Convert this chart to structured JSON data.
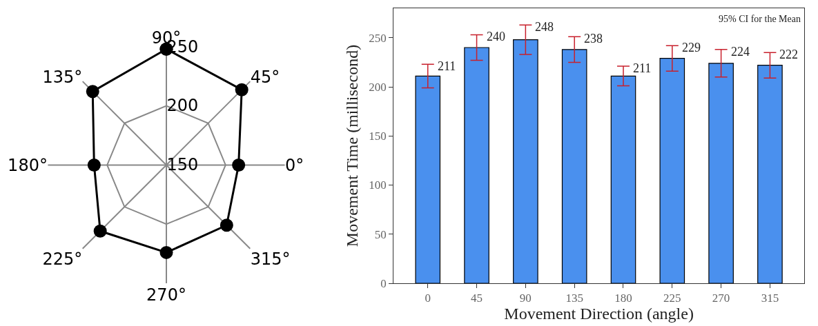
{
  "chart_data": [
    {
      "type": "radar",
      "categories": [
        "90°",
        "45°",
        "0°",
        "315°",
        "270°",
        "225°",
        "180°",
        "135°"
      ],
      "series": [
        {
          "color": "#000000",
          "values": [
            248,
            240,
            211,
            222,
            224,
            229,
            211,
            238
          ]
        }
      ],
      "ylim": [
        150,
        250
      ],
      "yticks": [
        150,
        200,
        250
      ],
      "grid": true,
      "marker": "circle",
      "line_style": "solid"
    },
    {
      "type": "bar",
      "xlabel": "Movement Direction (angle)",
      "ylabel": "Movement Time (millisecond)",
      "annotations": [
        "95% CI for the Mean"
      ],
      "categories": [
        "0",
        "45",
        "90",
        "135",
        "180",
        "225",
        "270",
        "315"
      ],
      "values": [
        211,
        240,
        248,
        238,
        211,
        229,
        224,
        222
      ],
      "errors": [
        12,
        13,
        15,
        13,
        10,
        13,
        14,
        13
      ],
      "color": "#4a90ee",
      "ylim": [
        0,
        280
      ],
      "yticks": [
        0,
        50,
        100,
        150,
        200,
        250
      ],
      "data_labels": true,
      "grid": false
    }
  ]
}
